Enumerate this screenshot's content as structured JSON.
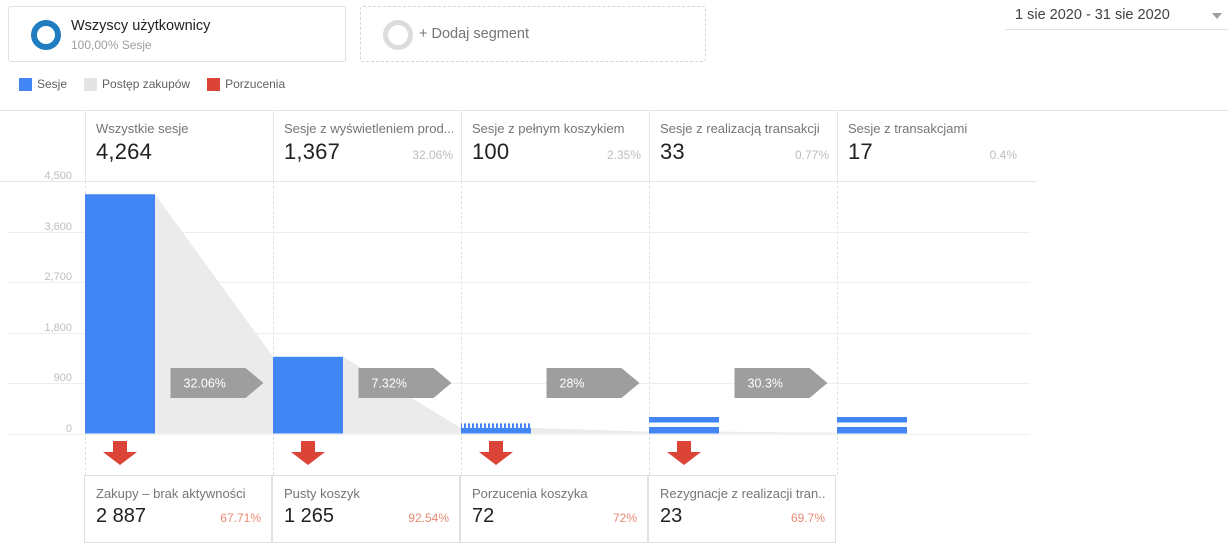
{
  "topbar": {
    "segment": {
      "title": "Wszyscy użytkownicy",
      "subtitle": "100,00% Sesje"
    },
    "add_segment_label": "+ Dodaj segment",
    "date_range": "1 sie 2020 - 31 sie 2020"
  },
  "legend": [
    {
      "label": "Sesje",
      "color": "#4285f4"
    },
    {
      "label": "Postęp zakupów",
      "color": "#e4e4e4"
    },
    {
      "label": "Porzucenia",
      "color": "#db4437"
    }
  ],
  "colors": {
    "bar_blue": "#4285f4",
    "funnel_gray": "#ebebeb",
    "badge_gray": "#9e9e9e",
    "abandon_red": "#db4437",
    "pct_salmon": "#e98a74",
    "segment_ring_blue": "#1f7dc0"
  },
  "chart_data": {
    "type": "funnel",
    "ymax": 4500,
    "yticks": [
      {
        "label": "4,500",
        "value": 4500
      },
      {
        "label": "3,600",
        "value": 3600
      },
      {
        "label": "2,700",
        "value": 2700
      },
      {
        "label": "1,800",
        "value": 1800
      },
      {
        "label": "900",
        "value": 900
      },
      {
        "label": "0",
        "value": 0
      }
    ],
    "stages": [
      {
        "label": "Wszystkie sesje",
        "value": 4264,
        "value_display": "4,264",
        "pct": ""
      },
      {
        "label": "Sesje z wyświetleniem prod...",
        "value": 1367,
        "value_display": "1,367",
        "pct": "32.06%"
      },
      {
        "label": "Sesje z pełnym koszykiem",
        "value": 100,
        "value_display": "100",
        "pct": "2.35%"
      },
      {
        "label": "Sesje z realizacją transakcji",
        "value": 33,
        "value_display": "33",
        "pct": "0.77%"
      },
      {
        "label": "Sesje z transakcjami",
        "value": 17,
        "value_display": "17",
        "pct": "0.4%"
      }
    ],
    "continuation_rates": [
      "32.06%",
      "7.32%",
      "28%",
      "30.3%"
    ],
    "abandonments": [
      {
        "label": "Zakupy – brak aktywności",
        "value_display": "2 887",
        "pct": "67.71%"
      },
      {
        "label": "Pusty koszyk",
        "value_display": "1 265",
        "pct": "92.54%"
      },
      {
        "label": "Porzucenia koszyka",
        "value_display": "72",
        "pct": "72%"
      },
      {
        "label": "Rezygnacje z realizacji tran...",
        "value_display": "23",
        "pct": "69.7%"
      }
    ]
  }
}
